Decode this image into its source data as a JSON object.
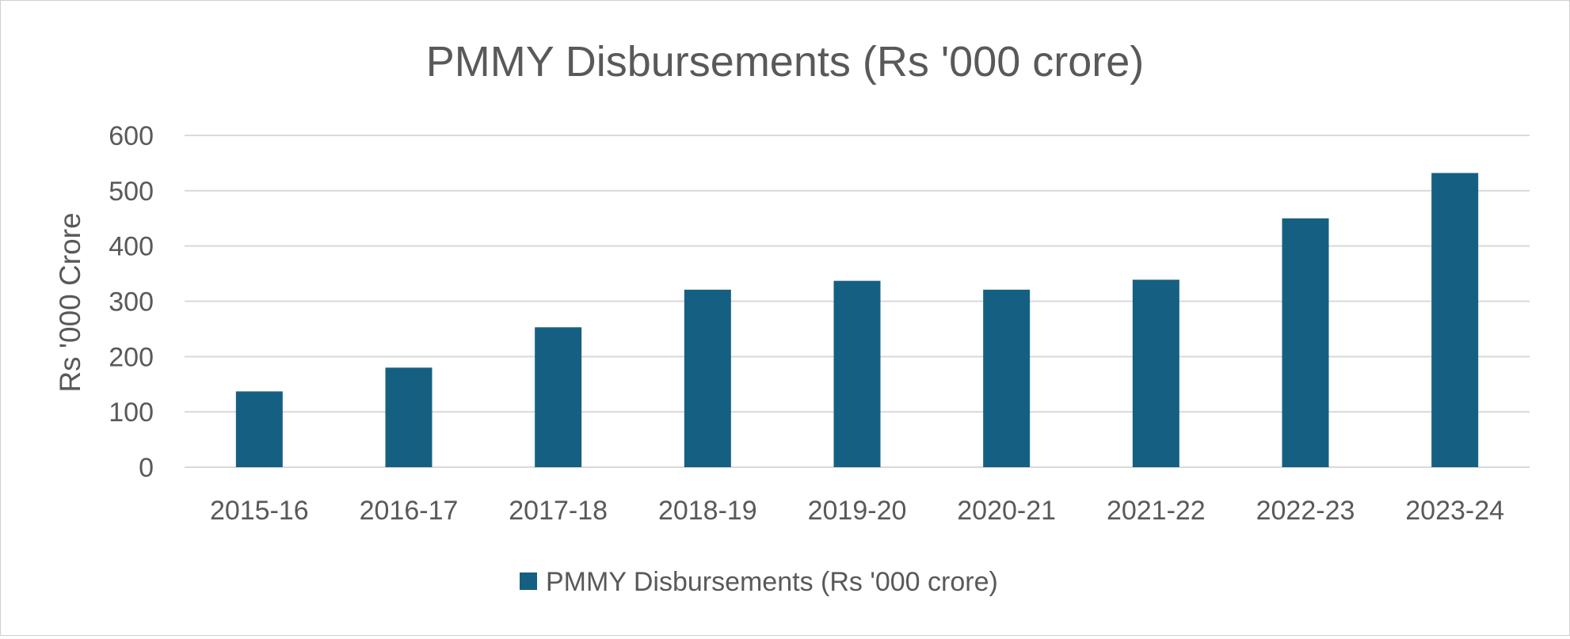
{
  "chart_data": {
    "type": "bar",
    "title": "PMMY Disbursements (Rs '000 crore)",
    "xlabel": "",
    "ylabel": "Rs '000 Crore",
    "categories": [
      "2015-16",
      "2016-17",
      "2017-18",
      "2018-19",
      "2019-20",
      "2020-21",
      "2021-22",
      "2022-23",
      "2023-24"
    ],
    "series": [
      {
        "name": "PMMY Disbursements (Rs '000 crore)",
        "values": [
          137,
          180,
          253,
          321,
          337,
          321,
          339,
          450,
          532
        ],
        "color": "#156082"
      }
    ],
    "ylim": [
      0,
      600
    ],
    "yticks": [
      0,
      100,
      200,
      300,
      400,
      500,
      600
    ],
    "grid": true,
    "legend": "bottom"
  }
}
